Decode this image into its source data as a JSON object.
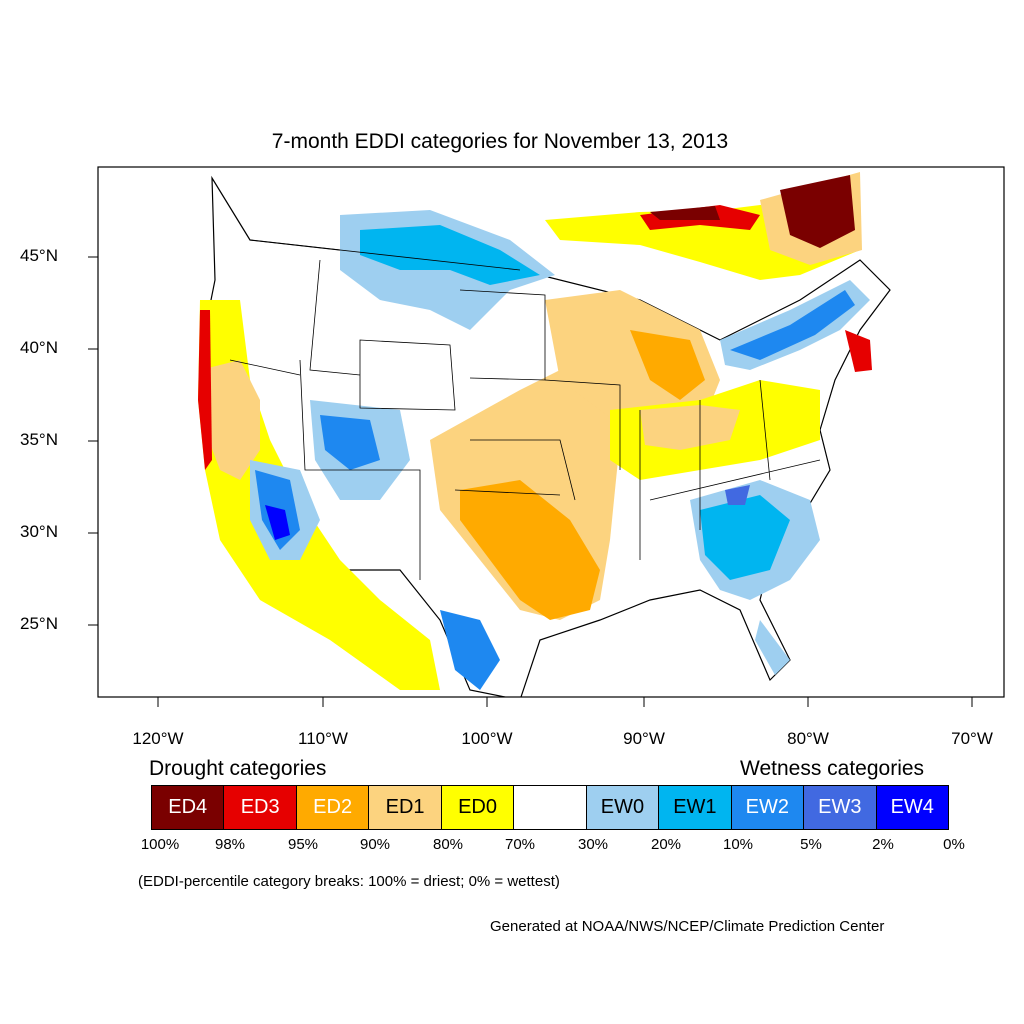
{
  "title": "7-month EDDI categories for November 13, 2013",
  "latitude_labels": [
    "45°N",
    "40°N",
    "35°N",
    "30°N",
    "25°N"
  ],
  "longitude_labels": [
    "120°W",
    "110°W",
    "100°W",
    "90°W",
    "80°W",
    "70°W"
  ],
  "legend": {
    "drought_heading": "Drought categories",
    "wetness_heading": "Wetness categories",
    "categories": [
      {
        "label": "ED4",
        "color": "#7a0000",
        "text_color": "#ffffff"
      },
      {
        "label": "ED3",
        "color": "#e60000",
        "text_color": "#ffffff"
      },
      {
        "label": "ED2",
        "color": "#ffaa00",
        "text_color": "#ffffff"
      },
      {
        "label": "ED1",
        "color": "#fcd37f",
        "text_color": "#000000"
      },
      {
        "label": "ED0",
        "color": "#ffff00",
        "text_color": "#000000"
      },
      {
        "label": "",
        "color": "#ffffff",
        "text_color": "#000000"
      },
      {
        "label": "EW0",
        "color": "#9ecff0",
        "text_color": "#000000"
      },
      {
        "label": "EW1",
        "color": "#00b5f0",
        "text_color": "#000000"
      },
      {
        "label": "EW2",
        "color": "#1e88f0",
        "text_color": "#ffffff"
      },
      {
        "label": "EW3",
        "color": "#4169e1",
        "text_color": "#ffffff"
      },
      {
        "label": "EW4",
        "color": "#0000ff",
        "text_color": "#ffffff"
      }
    ],
    "percent_breaks": [
      "100%",
      "98%",
      "95%",
      "90%",
      "80%",
      "70%",
      "30%",
      "20%",
      "10%",
      "5%",
      "2%",
      "0%"
    ]
  },
  "note": "(EDDI-percentile category breaks: 100% = driest; 0% = wettest)",
  "credit": "Generated at NOAA/NWS/NCEP/Climate Prediction Center"
}
